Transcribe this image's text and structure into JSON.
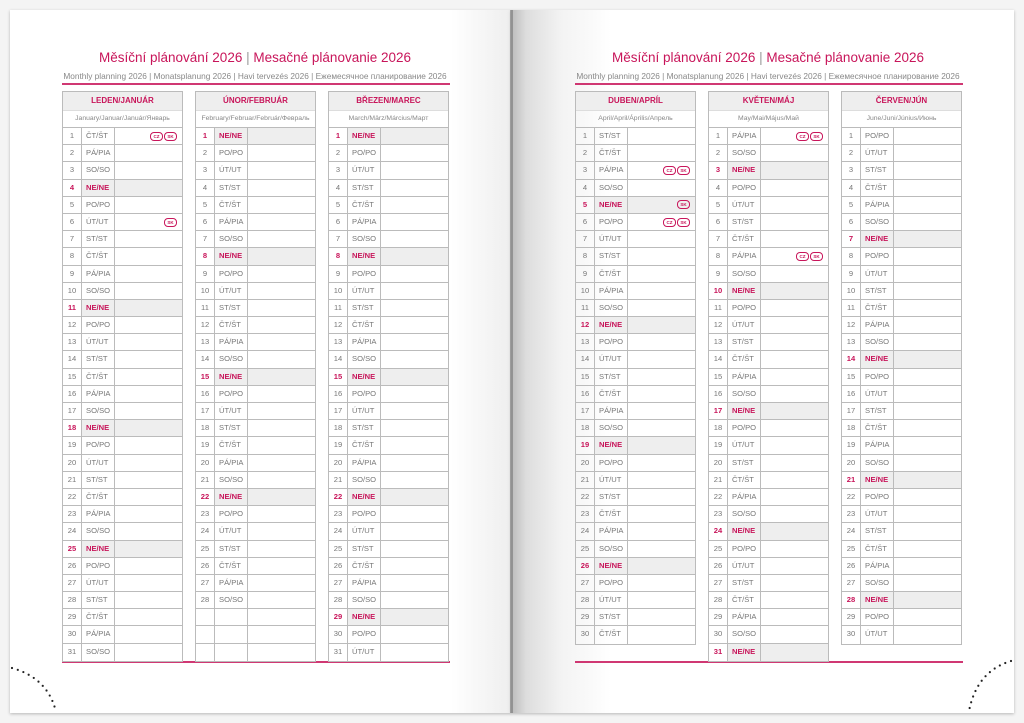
{
  "pages": [
    {
      "title_cz": "Měsíční plánování 2026",
      "title_sk": "Mesačné plánovanie 2026",
      "subtitle": "Monthly planning 2026 | Monatsplanung 2026 | Havi tervezés 2026 | Ежемесячное планирование 2026",
      "months": [
        {
          "name": "LEDEN/JANUÁR",
          "sub": "January/Januar/Január/Январь",
          "rows": 31,
          "days": [
            "ČT/ŠT",
            "PÁ/PIA",
            "SO/SO",
            "NE/NE",
            "PO/PO",
            "ÚT/UT",
            "ST/ST",
            "ČT/ŠT",
            "PÁ/PIA",
            "SO/SO",
            "NE/NE",
            "PO/PO",
            "ÚT/UT",
            "ST/ST",
            "ČT/ŠT",
            "PÁ/PIA",
            "SO/SO",
            "NE/NE",
            "PO/PO",
            "ÚT/UT",
            "ST/ST",
            "ČT/ŠT",
            "PÁ/PIA",
            "SO/SO",
            "NE/NE",
            "PO/PO",
            "ÚT/UT",
            "ST/ST",
            "ČT/ŠT",
            "PÁ/PIA",
            "SO/SO"
          ],
          "holidays": {
            "1": [
              "CZ",
              "SK"
            ],
            "6": [
              "SK"
            ]
          }
        },
        {
          "name": "ÚNOR/FEBRUÁR",
          "sub": "February/Februar/Február/Февраль",
          "rows": 31,
          "days": [
            "NE/NE",
            "PO/PO",
            "ÚT/UT",
            "ST/ST",
            "ČT/ŠT",
            "PÁ/PIA",
            "SO/SO",
            "NE/NE",
            "PO/PO",
            "ÚT/UT",
            "ST/ST",
            "ČT/ŠT",
            "PÁ/PIA",
            "SO/SO",
            "NE/NE",
            "PO/PO",
            "ÚT/UT",
            "ST/ST",
            "ČT/ŠT",
            "PÁ/PIA",
            "SO/SO",
            "NE/NE",
            "PO/PO",
            "ÚT/UT",
            "ST/ST",
            "ČT/ŠT",
            "PÁ/PIA",
            "SO/SO"
          ],
          "holidays": {}
        },
        {
          "name": "BŘEZEN/MAREC",
          "sub": "March/März/Március/Март",
          "rows": 31,
          "days": [
            "NE/NE",
            "PO/PO",
            "ÚT/UT",
            "ST/ST",
            "ČT/ŠT",
            "PÁ/PIA",
            "SO/SO",
            "NE/NE",
            "PO/PO",
            "ÚT/UT",
            "ST/ST",
            "ČT/ŠT",
            "PÁ/PIA",
            "SO/SO",
            "NE/NE",
            "PO/PO",
            "ÚT/UT",
            "ST/ST",
            "ČT/ŠT",
            "PÁ/PIA",
            "SO/SO",
            "NE/NE",
            "PO/PO",
            "ÚT/UT",
            "ST/ST",
            "ČT/ŠT",
            "PÁ/PIA",
            "SO/SO",
            "NE/NE",
            "PO/PO",
            "ÚT/UT"
          ],
          "holidays": {}
        }
      ]
    },
    {
      "title_cz": "Měsíční plánování 2026",
      "title_sk": "Mesačné plánovanie 2026",
      "subtitle": "Monthly planning 2026 | Monatsplanung 2026 | Havi tervezés 2026 | Ежемесячное планирование 2026",
      "months": [
        {
          "name": "DUBEN/APRÍL",
          "sub": "April/April/Április/Апрель",
          "rows": 30,
          "days": [
            "ST/ST",
            "ČT/ŠT",
            "PÁ/PIA",
            "SO/SO",
            "NE/NE",
            "PO/PO",
            "ÚT/UT",
            "ST/ST",
            "ČT/ŠT",
            "PÁ/PIA",
            "SO/SO",
            "NE/NE",
            "PO/PO",
            "ÚT/UT",
            "ST/ST",
            "ČT/ŠT",
            "PÁ/PIA",
            "SO/SO",
            "NE/NE",
            "PO/PO",
            "ÚT/UT",
            "ST/ST",
            "ČT/ŠT",
            "PÁ/PIA",
            "SO/SO",
            "NE/NE",
            "PO/PO",
            "ÚT/UT",
            "ST/ST",
            "ČT/ŠT"
          ],
          "holidays": {
            "3": [
              "CZ",
              "SK"
            ],
            "5": [
              "SK"
            ],
            "6": [
              "CZ",
              "SK"
            ]
          }
        },
        {
          "name": "KVĚTEN/MÁJ",
          "sub": "May/Mai/Május/Май",
          "rows": 31,
          "days": [
            "PÁ/PIA",
            "SO/SO",
            "NE/NE",
            "PO/PO",
            "ÚT/UT",
            "ST/ST",
            "ČT/ŠT",
            "PÁ/PIA",
            "SO/SO",
            "NE/NE",
            "PO/PO",
            "ÚT/UT",
            "ST/ST",
            "ČT/ŠT",
            "PÁ/PIA",
            "SO/SO",
            "NE/NE",
            "PO/PO",
            "ÚT/UT",
            "ST/ST",
            "ČT/ŠT",
            "PÁ/PIA",
            "SO/SO",
            "NE/NE",
            "PO/PO",
            "ÚT/UT",
            "ST/ST",
            "ČT/ŠT",
            "PÁ/PIA",
            "SO/SO",
            "NE/NE"
          ],
          "holidays": {
            "1": [
              "CZ",
              "SK"
            ],
            "8": [
              "CZ",
              "SK"
            ]
          }
        },
        {
          "name": "ČERVEN/JÚN",
          "sub": "June/Juni/Június/Июнь",
          "rows": 30,
          "days": [
            "PO/PO",
            "ÚT/UT",
            "ST/ST",
            "ČT/ŠT",
            "PÁ/PIA",
            "SO/SO",
            "NE/NE",
            "PO/PO",
            "ÚT/UT",
            "ST/ST",
            "ČT/ŠT",
            "PÁ/PIA",
            "SO/SO",
            "NE/NE",
            "PO/PO",
            "ÚT/UT",
            "ST/ST",
            "ČT/ŠT",
            "PÁ/PIA",
            "SO/SO",
            "NE/NE",
            "PO/PO",
            "ÚT/UT",
            "ST/ST",
            "ČT/ŠT",
            "PÁ/PIA",
            "SO/SO",
            "NE/NE",
            "PO/PO",
            "ÚT/UT"
          ],
          "holidays": {}
        }
      ]
    }
  ],
  "colors": {
    "accent": "#c8155a",
    "sunday_bg": "#eeeeee",
    "grid": "#bbbbbb"
  },
  "sunday_label": "NE/NE"
}
